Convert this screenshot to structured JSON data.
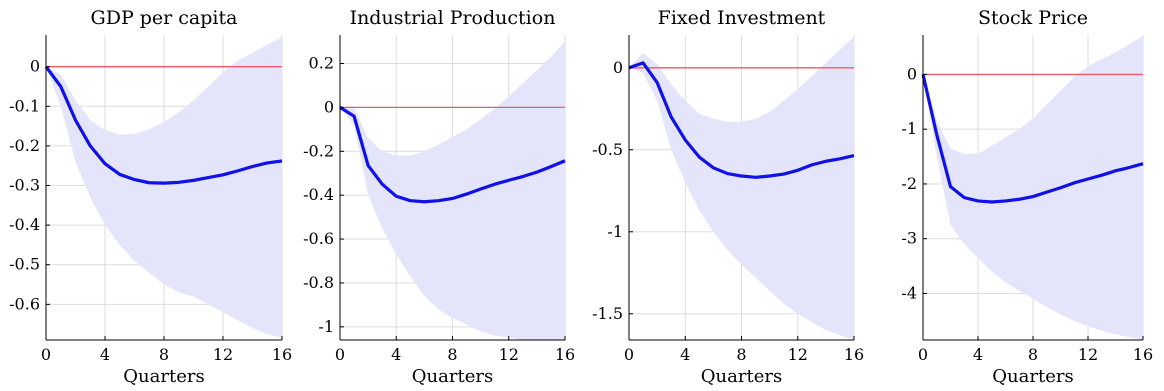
{
  "chart_data": [
    {
      "type": "line",
      "title": "GDP per capita",
      "xlabel": "Quarters",
      "ylabel": "",
      "xlim": [
        0,
        16
      ],
      "ylim": [
        -0.69,
        0.08
      ],
      "xticks": [
        0,
        4,
        8,
        12,
        16
      ],
      "yticks": [
        0,
        -0.1,
        -0.2,
        -0.3,
        -0.4,
        -0.5,
        -0.6
      ],
      "ytick_labels": [
        "0",
        "-0.1",
        "-0.2",
        "-0.3",
        "-0.4",
        "-0.5",
        "-0.6"
      ],
      "grid": true,
      "zero_line": 0,
      "x": [
        0,
        1,
        2,
        3,
        4,
        5,
        6,
        7,
        8,
        9,
        10,
        11,
        12,
        13,
        14,
        15,
        16
      ],
      "series": [
        {
          "role": "response",
          "values": [
            0,
            -0.05,
            -0.135,
            -0.2,
            -0.245,
            -0.272,
            -0.285,
            -0.293,
            -0.294,
            -0.292,
            -0.287,
            -0.28,
            -0.273,
            -0.263,
            -0.252,
            -0.243,
            -0.238
          ]
        },
        {
          "role": "upper",
          "values": [
            0,
            -0.02,
            -0.085,
            -0.135,
            -0.16,
            -0.172,
            -0.17,
            -0.158,
            -0.14,
            -0.115,
            -0.085,
            -0.05,
            -0.015,
            0.015,
            0.035,
            0.055,
            0.075
          ]
        },
        {
          "role": "lower",
          "values": [
            0,
            -0.1,
            -0.24,
            -0.33,
            -0.4,
            -0.45,
            -0.49,
            -0.52,
            -0.55,
            -0.57,
            -0.58,
            -0.6,
            -0.62,
            -0.64,
            -0.66,
            -0.675,
            -0.685
          ]
        }
      ]
    },
    {
      "type": "line",
      "title": "Industrial Production",
      "xlabel": "Quarters",
      "ylabel": "",
      "xlim": [
        0,
        16
      ],
      "ylim": [
        -1.06,
        0.33
      ],
      "xticks": [
        0,
        4,
        8,
        12,
        16
      ],
      "yticks": [
        0.2,
        0,
        -0.2,
        -0.4,
        -0.6,
        -0.8,
        -1
      ],
      "ytick_labels": [
        "0.2",
        "0",
        "-0.2",
        "-0.4",
        "-0.6",
        "-0.8",
        "-1"
      ],
      "grid": true,
      "zero_line": 0,
      "x": [
        0,
        1,
        2,
        3,
        4,
        5,
        6,
        7,
        8,
        9,
        10,
        11,
        12,
        13,
        14,
        15,
        16
      ],
      "series": [
        {
          "role": "response",
          "values": [
            0,
            -0.04,
            -0.265,
            -0.35,
            -0.405,
            -0.425,
            -0.43,
            -0.425,
            -0.415,
            -0.395,
            -0.372,
            -0.35,
            -0.332,
            -0.315,
            -0.295,
            -0.27,
            -0.243
          ]
        },
        {
          "role": "upper",
          "values": [
            0,
            0,
            -0.14,
            -0.2,
            -0.22,
            -0.22,
            -0.2,
            -0.17,
            -0.135,
            -0.1,
            -0.055,
            -0.005,
            0.05,
            0.11,
            0.17,
            0.23,
            0.3
          ]
        },
        {
          "role": "lower",
          "values": [
            0,
            -0.08,
            -0.4,
            -0.55,
            -0.67,
            -0.77,
            -0.86,
            -0.92,
            -0.96,
            -0.99,
            -1.02,
            -1.04,
            -1.05,
            -1.06,
            -1.06,
            -1.06,
            -1.06
          ]
        }
      ]
    },
    {
      "type": "line",
      "title": "Fixed Investment",
      "xlabel": "Quarters",
      "ylabel": "",
      "xlim": [
        0,
        16
      ],
      "ylim": [
        -1.66,
        0.2
      ],
      "xticks": [
        0,
        4,
        8,
        12,
        16
      ],
      "yticks": [
        0,
        -0.5,
        -1,
        -1.5
      ],
      "ytick_labels": [
        "0",
        "-0.5",
        "-1",
        "-1.5"
      ],
      "grid": true,
      "zero_line": 0,
      "x": [
        0,
        1,
        2,
        3,
        4,
        5,
        6,
        7,
        8,
        9,
        10,
        11,
        12,
        13,
        14,
        15,
        16
      ],
      "series": [
        {
          "role": "response",
          "values": [
            0,
            0.03,
            -0.09,
            -0.3,
            -0.44,
            -0.545,
            -0.61,
            -0.645,
            -0.66,
            -0.668,
            -0.66,
            -0.648,
            -0.625,
            -0.592,
            -0.57,
            -0.555,
            -0.535
          ]
        },
        {
          "role": "upper",
          "values": [
            0,
            0.09,
            0.02,
            -0.1,
            -0.2,
            -0.28,
            -0.31,
            -0.33,
            -0.33,
            -0.31,
            -0.27,
            -0.2,
            -0.13,
            -0.05,
            0.03,
            0.11,
            0.19
          ]
        },
        {
          "role": "lower",
          "values": [
            0,
            -0.03,
            -0.2,
            -0.5,
            -0.7,
            -0.87,
            -1,
            -1.11,
            -1.2,
            -1.28,
            -1.36,
            -1.44,
            -1.5,
            -1.55,
            -1.6,
            -1.63,
            -1.66
          ]
        }
      ]
    },
    {
      "type": "line",
      "title": "Stock Price",
      "xlabel": "Quarters",
      "ylabel": "",
      "xlim": [
        0,
        16
      ],
      "ylim": [
        -4.85,
        0.72
      ],
      "xticks": [
        0,
        4,
        8,
        12,
        16
      ],
      "yticks": [
        0,
        -1,
        -2,
        -3,
        -4
      ],
      "ytick_labels": [
        "0",
        "-1",
        "-2",
        "-3",
        "-4"
      ],
      "grid": true,
      "zero_line": 0,
      "x": [
        0,
        1,
        2,
        3,
        4,
        5,
        6,
        7,
        8,
        9,
        10,
        11,
        12,
        13,
        14,
        15,
        16
      ],
      "series": [
        {
          "role": "response",
          "values": [
            0,
            -1.1,
            -2.05,
            -2.25,
            -2.31,
            -2.33,
            -2.31,
            -2.28,
            -2.23,
            -2.15,
            -2.07,
            -1.98,
            -1.91,
            -1.84,
            -1.76,
            -1.7,
            -1.63
          ]
        },
        {
          "role": "upper",
          "values": [
            0,
            -0.85,
            -1.35,
            -1.45,
            -1.45,
            -1.3,
            -1.15,
            -1,
            -0.8,
            -0.55,
            -0.3,
            -0.05,
            0.15,
            0.28,
            0.4,
            0.55,
            0.7
          ]
        },
        {
          "role": "lower",
          "values": [
            0,
            -1.5,
            -2.75,
            -3.1,
            -3.35,
            -3.6,
            -3.8,
            -3.95,
            -4.1,
            -4.25,
            -4.38,
            -4.5,
            -4.6,
            -4.68,
            -4.75,
            -4.8,
            -4.85
          ]
        }
      ]
    }
  ],
  "colors": {
    "response": "#1010e8",
    "band": "#e4e4fb",
    "zero_line": "#ee5a6a",
    "grid": "#dddddd",
    "axis": "#000000"
  }
}
